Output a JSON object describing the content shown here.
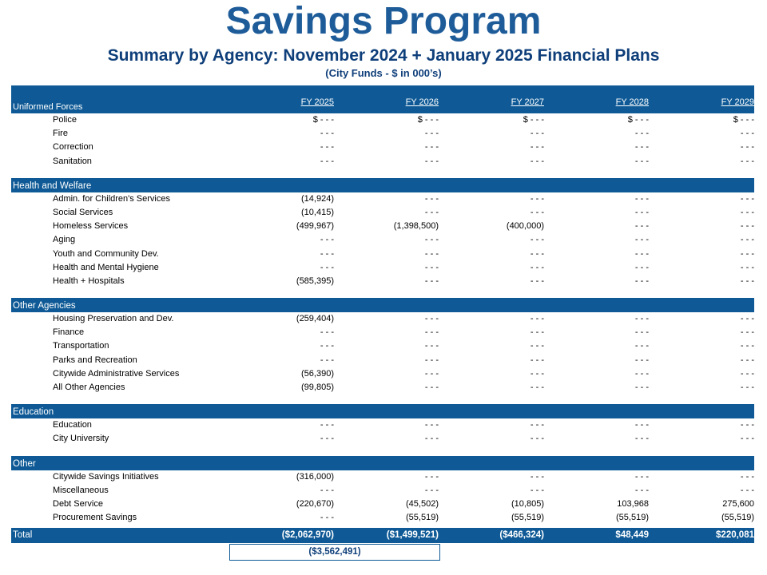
{
  "title": "Savings Program",
  "subtitle": "Summary by Agency: November 2024  + January 2025 Financial Plans",
  "units": "(City Funds - $ in 000’s)",
  "columns": [
    "FY 2025",
    "FY 2026",
    "FY 2027",
    "FY 2028",
    "FY 2029"
  ],
  "uniformed": {
    "label": "Uniformed Forces",
    "rows": [
      {
        "name": "Police",
        "values": [
          "$ - - -",
          "$ - - -",
          "$ - - -",
          "$ - - -",
          "$ - - -"
        ]
      },
      {
        "name": "Fire",
        "values": [
          "- - -",
          "- - -",
          "- - -",
          "- - -",
          "- - -"
        ]
      },
      {
        "name": "Correction",
        "values": [
          "- - -",
          "- - -",
          "- - -",
          "- - -",
          "- - -"
        ]
      },
      {
        "name": "Sanitation",
        "values": [
          "- - -",
          "- - -",
          "- - -",
          "- - -",
          "- - -"
        ]
      }
    ]
  },
  "health": {
    "label": "Health and Welfare",
    "rows": [
      {
        "name": "Admin. for Children's Services",
        "values": [
          "(14,924)",
          "- - -",
          "- - -",
          "- - -",
          "- - -"
        ]
      },
      {
        "name": "Social Services",
        "values": [
          "(10,415)",
          "- - -",
          "- - -",
          "- - -",
          "- - -"
        ]
      },
      {
        "name": "Homeless Services",
        "values": [
          "(499,967)",
          "(1,398,500)",
          "(400,000)",
          "- - -",
          "- - -"
        ]
      },
      {
        "name": "Aging",
        "values": [
          "- - -",
          "- - -",
          "- - -",
          "- - -",
          "- - -"
        ]
      },
      {
        "name": "Youth and Community Dev.",
        "values": [
          "- - -",
          "- - -",
          "- - -",
          "- - -",
          "- - -"
        ]
      },
      {
        "name": "Health and Mental Hygiene",
        "values": [
          "- - -",
          "- - -",
          "- - -",
          "- - -",
          "- - -"
        ]
      },
      {
        "name": "Health + Hospitals",
        "values": [
          "(585,395)",
          "- - -",
          "- - -",
          "- - -",
          "- - -"
        ]
      }
    ]
  },
  "other_agencies": {
    "label": "Other Agencies",
    "rows": [
      {
        "name": "Housing Preservation  and Dev.",
        "values": [
          "(259,404)",
          "- - -",
          "- - -",
          "- - -",
          "- - -"
        ]
      },
      {
        "name": "Finance",
        "values": [
          "- - -",
          "- - -",
          "- - -",
          "- - -",
          "- - -"
        ]
      },
      {
        "name": "Transportation",
        "values": [
          "- - -",
          "- - -",
          "- - -",
          "- - -",
          "- - -"
        ]
      },
      {
        "name": "Parks and Recreation",
        "values": [
          "- - -",
          "- - -",
          "- - -",
          "- - -",
          "- - -"
        ]
      },
      {
        "name": "Citywide Administrative  Services",
        "values": [
          "(56,390)",
          "- - -",
          "- - -",
          "- - -",
          "- - -"
        ]
      },
      {
        "name": "All Other Agencies",
        "values": [
          "(99,805)",
          "- - -",
          "- - -",
          "- - -",
          "- - -"
        ]
      }
    ]
  },
  "education": {
    "label": "Education",
    "rows": [
      {
        "name": "Education",
        "values": [
          "- - -",
          "- - -",
          "- - -",
          "- - -",
          "- - -"
        ]
      },
      {
        "name": "City University",
        "values": [
          "- - -",
          "- - -",
          "- - -",
          "- - -",
          "- - -"
        ]
      }
    ]
  },
  "other": {
    "label": "Other",
    "rows": [
      {
        "name": "Citywide Savings Initiatives",
        "values": [
          "(316,000)",
          "- - -",
          "- - -",
          "- - -",
          "- - -"
        ]
      },
      {
        "name": "Miscellaneous",
        "values": [
          "- - -",
          "- - -",
          "- - -",
          "- - -",
          "- - -"
        ]
      },
      {
        "name": "Debt Service",
        "values": [
          "(220,670)",
          "(45,502)",
          "(10,805)",
          "103,968",
          "275,600"
        ]
      },
      {
        "name": "Procurement  Savings",
        "values": [
          "- - -",
          "(55,519)",
          "(55,519)",
          "(55,519)",
          "(55,519)"
        ]
      }
    ]
  },
  "total": {
    "label": "Total",
    "values": [
      "($2,062,970)",
      "($1,499,521)",
      "($466,324)",
      "$48,449",
      "$220,081"
    ]
  },
  "grand_total": "($3,562,491)"
}
